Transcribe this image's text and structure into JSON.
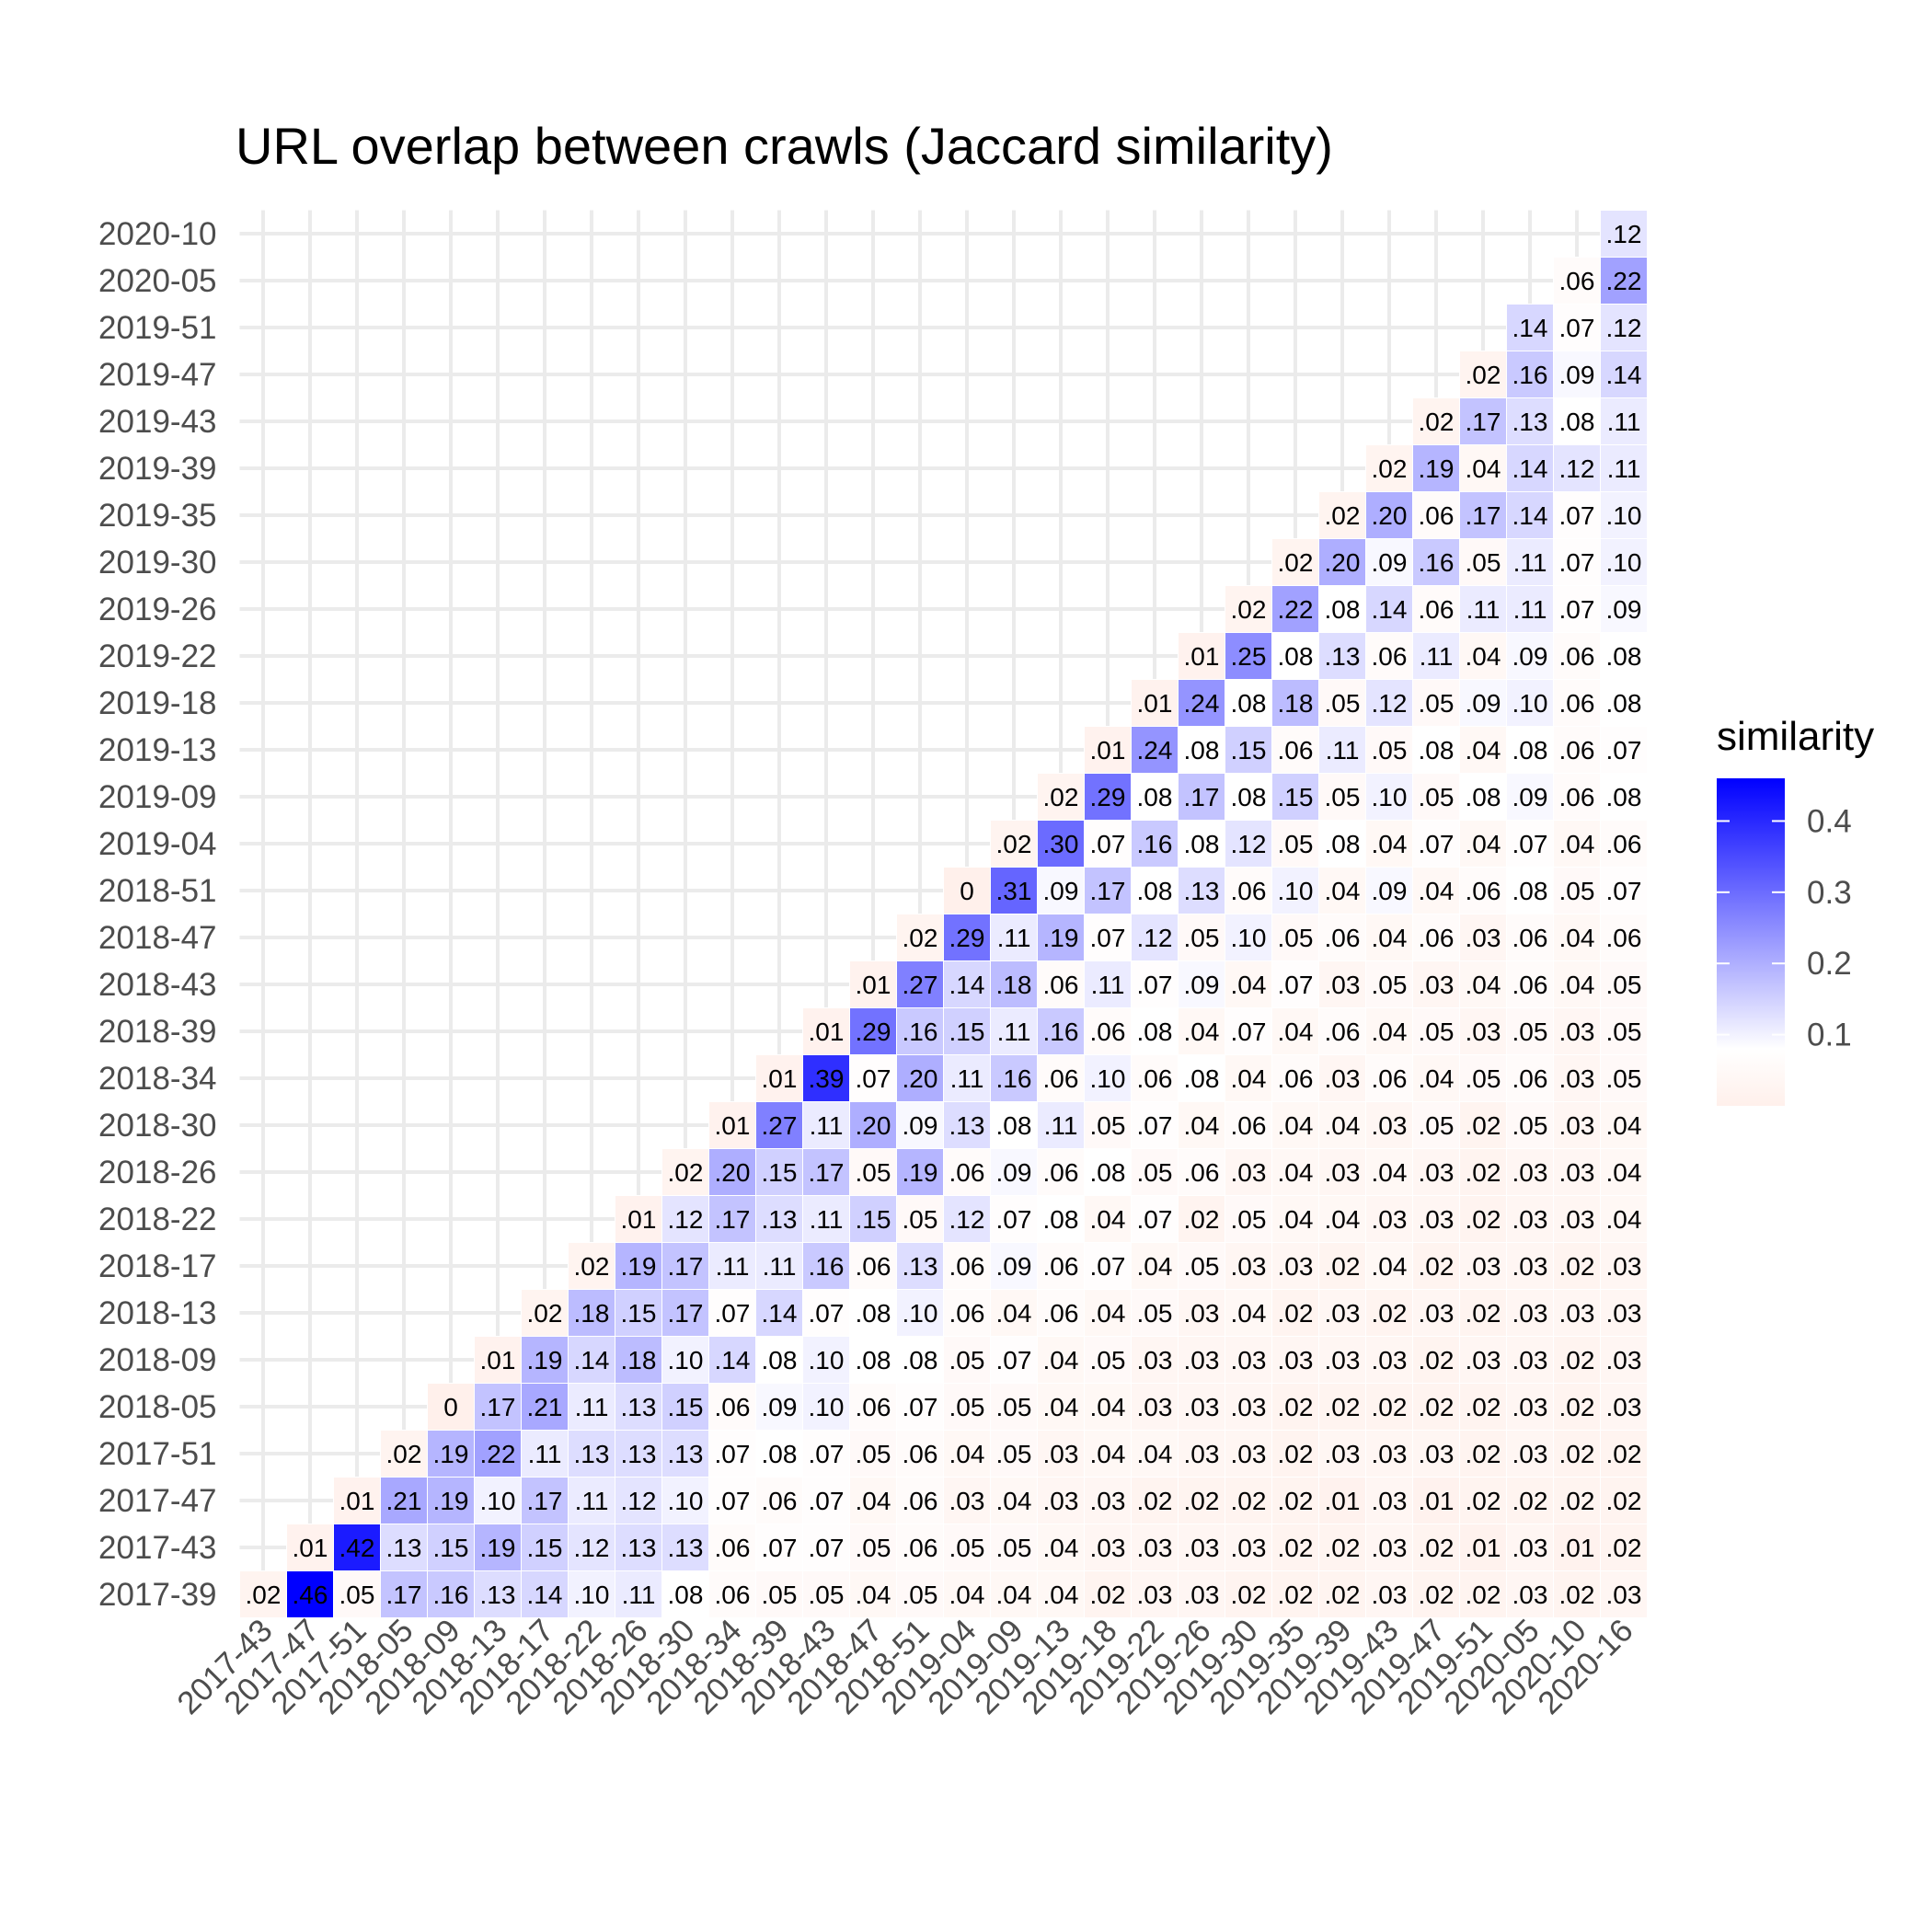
{
  "chart_data": {
    "type": "heatmap",
    "title": "URL overlap between crawls (Jaccard similarity)",
    "xlabel": "",
    "ylabel": "",
    "x_categories": [
      "2017-43",
      "2017-47",
      "2017-51",
      "2018-05",
      "2018-09",
      "2018-13",
      "2018-17",
      "2018-22",
      "2018-26",
      "2018-30",
      "2018-34",
      "2018-39",
      "2018-43",
      "2018-47",
      "2018-51",
      "2019-04",
      "2019-09",
      "2019-13",
      "2019-18",
      "2019-22",
      "2019-26",
      "2019-30",
      "2019-35",
      "2019-39",
      "2019-43",
      "2019-47",
      "2019-51",
      "2020-05",
      "2020-10",
      "2020-16"
    ],
    "y_categories": [
      "2017-39",
      "2017-43",
      "2017-47",
      "2017-51",
      "2018-05",
      "2018-09",
      "2018-13",
      "2018-17",
      "2018-22",
      "2018-26",
      "2018-30",
      "2018-34",
      "2018-39",
      "2018-43",
      "2018-47",
      "2018-51",
      "2019-04",
      "2019-09",
      "2019-13",
      "2019-18",
      "2019-22",
      "2019-26",
      "2019-30",
      "2019-35",
      "2019-39",
      "2019-43",
      "2019-47",
      "2019-51",
      "2020-05",
      "2020-10"
    ],
    "rows": [
      [
        ".02",
        ".46",
        ".05",
        ".17",
        ".16",
        ".13",
        ".14",
        ".10",
        ".11",
        ".08",
        ".06",
        ".05",
        ".05",
        ".04",
        ".05",
        ".04",
        ".04",
        ".04",
        ".02",
        ".03",
        ".03",
        ".02",
        ".02",
        ".02",
        ".03",
        ".02",
        ".02",
        ".03",
        ".02",
        ".03"
      ],
      [
        ".01",
        ".42",
        ".13",
        ".15",
        ".19",
        ".15",
        ".12",
        ".13",
        ".13",
        ".06",
        ".07",
        ".07",
        ".05",
        ".06",
        ".05",
        ".05",
        ".04",
        ".03",
        ".03",
        ".03",
        ".03",
        ".02",
        ".02",
        ".03",
        ".02",
        ".01",
        ".03",
        ".01",
        ".02"
      ],
      [
        ".01",
        ".21",
        ".19",
        ".10",
        ".17",
        ".11",
        ".12",
        ".10",
        ".07",
        ".06",
        ".07",
        ".04",
        ".06",
        ".03",
        ".04",
        ".03",
        ".03",
        ".02",
        ".02",
        ".02",
        ".02",
        ".01",
        ".03",
        ".01",
        ".02",
        ".02",
        ".02",
        ".02"
      ],
      [
        ".02",
        ".19",
        ".22",
        ".11",
        ".13",
        ".13",
        ".13",
        ".07",
        ".08",
        ".07",
        ".05",
        ".06",
        ".04",
        ".05",
        ".03",
        ".04",
        ".04",
        ".03",
        ".03",
        ".02",
        ".03",
        ".03",
        ".03",
        ".02",
        ".03",
        ".02",
        ".02"
      ],
      [
        "0",
        ".17",
        ".21",
        ".11",
        ".13",
        ".15",
        ".06",
        ".09",
        ".10",
        ".06",
        ".07",
        ".05",
        ".05",
        ".04",
        ".04",
        ".03",
        ".03",
        ".03",
        ".02",
        ".02",
        ".02",
        ".02",
        ".02",
        ".03",
        ".02",
        ".03"
      ],
      [
        ".01",
        ".19",
        ".14",
        ".18",
        ".10",
        ".14",
        ".08",
        ".10",
        ".08",
        ".08",
        ".05",
        ".07",
        ".04",
        ".05",
        ".03",
        ".03",
        ".03",
        ".03",
        ".03",
        ".03",
        ".02",
        ".03",
        ".03",
        ".02",
        ".03"
      ],
      [
        ".02",
        ".18",
        ".15",
        ".17",
        ".07",
        ".14",
        ".07",
        ".08",
        ".10",
        ".06",
        ".04",
        ".06",
        ".04",
        ".05",
        ".03",
        ".04",
        ".02",
        ".03",
        ".02",
        ".03",
        ".02",
        ".03",
        ".03",
        ".03"
      ],
      [
        ".02",
        ".19",
        ".17",
        ".11",
        ".11",
        ".16",
        ".06",
        ".13",
        ".06",
        ".09",
        ".06",
        ".07",
        ".04",
        ".05",
        ".03",
        ".03",
        ".02",
        ".04",
        ".02",
        ".03",
        ".03",
        ".02",
        ".03"
      ],
      [
        ".01",
        ".12",
        ".17",
        ".13",
        ".11",
        ".15",
        ".05",
        ".12",
        ".07",
        ".08",
        ".04",
        ".07",
        ".02",
        ".05",
        ".04",
        ".04",
        ".03",
        ".03",
        ".02",
        ".03",
        ".03",
        ".04"
      ],
      [
        ".02",
        ".20",
        ".15",
        ".17",
        ".05",
        ".19",
        ".06",
        ".09",
        ".06",
        ".08",
        ".05",
        ".06",
        ".03",
        ".04",
        ".03",
        ".04",
        ".03",
        ".02",
        ".03",
        ".03",
        ".04"
      ],
      [
        ".01",
        ".27",
        ".11",
        ".20",
        ".09",
        ".13",
        ".08",
        ".11",
        ".05",
        ".07",
        ".04",
        ".06",
        ".04",
        ".04",
        ".03",
        ".05",
        ".02",
        ".05",
        ".03",
        ".04"
      ],
      [
        ".01",
        ".39",
        ".07",
        ".20",
        ".11",
        ".16",
        ".06",
        ".10",
        ".06",
        ".08",
        ".04",
        ".06",
        ".03",
        ".06",
        ".04",
        ".05",
        ".06",
        ".03",
        ".05"
      ],
      [
        ".01",
        ".29",
        ".16",
        ".15",
        ".11",
        ".16",
        ".06",
        ".08",
        ".04",
        ".07",
        ".04",
        ".06",
        ".04",
        ".05",
        ".03",
        ".05",
        ".03",
        ".05"
      ],
      [
        ".01",
        ".27",
        ".14",
        ".18",
        ".06",
        ".11",
        ".07",
        ".09",
        ".04",
        ".07",
        ".03",
        ".05",
        ".03",
        ".04",
        ".06",
        ".04",
        ".05"
      ],
      [
        ".02",
        ".29",
        ".11",
        ".19",
        ".07",
        ".12",
        ".05",
        ".10",
        ".05",
        ".06",
        ".04",
        ".06",
        ".03",
        ".06",
        ".04",
        ".06"
      ],
      [
        "0",
        ".31",
        ".09",
        ".17",
        ".08",
        ".13",
        ".06",
        ".10",
        ".04",
        ".09",
        ".04",
        ".06",
        ".08",
        ".05",
        ".07"
      ],
      [
        ".02",
        ".30",
        ".07",
        ".16",
        ".08",
        ".12",
        ".05",
        ".08",
        ".04",
        ".07",
        ".04",
        ".07",
        ".04",
        ".06"
      ],
      [
        ".02",
        ".29",
        ".08",
        ".17",
        ".08",
        ".15",
        ".05",
        ".10",
        ".05",
        ".08",
        ".09",
        ".06",
        ".08"
      ],
      [
        ".01",
        ".24",
        ".08",
        ".15",
        ".06",
        ".11",
        ".05",
        ".08",
        ".04",
        ".08",
        ".06",
        ".07"
      ],
      [
        ".01",
        ".24",
        ".08",
        ".18",
        ".05",
        ".12",
        ".05",
        ".09",
        ".10",
        ".06",
        ".08"
      ],
      [
        ".01",
        ".25",
        ".08",
        ".13",
        ".06",
        ".11",
        ".04",
        ".09",
        ".06",
        ".08"
      ],
      [
        ".02",
        ".22",
        ".08",
        ".14",
        ".06",
        ".11",
        ".11",
        ".07",
        ".09"
      ],
      [
        ".02",
        ".20",
        ".09",
        ".16",
        ".05",
        ".11",
        ".07",
        ".10"
      ],
      [
        ".02",
        ".20",
        ".06",
        ".17",
        ".14",
        ".07",
        ".10"
      ],
      [
        ".02",
        ".19",
        ".04",
        ".14",
        ".12",
        ".11"
      ],
      [
        ".02",
        ".17",
        ".13",
        ".08",
        ".11"
      ],
      [
        ".02",
        ".16",
        ".09",
        ".14"
      ],
      [
        ".14",
        ".07",
        ".12"
      ],
      [
        ".06",
        ".22"
      ],
      [
        ".12"
      ]
    ],
    "legend": {
      "title": "similarity",
      "position": "right",
      "ticks": [
        "0.1",
        "0.2",
        "0.3",
        "0.4"
      ],
      "tick_values": [
        0.1,
        0.2,
        0.3,
        0.4
      ],
      "range": [
        0,
        0.46
      ]
    },
    "colors": {
      "low": "#fff0eb",
      "mid": "#ffffff",
      "high": "#0000ff",
      "midpoint": 0.08
    },
    "grid": true
  }
}
